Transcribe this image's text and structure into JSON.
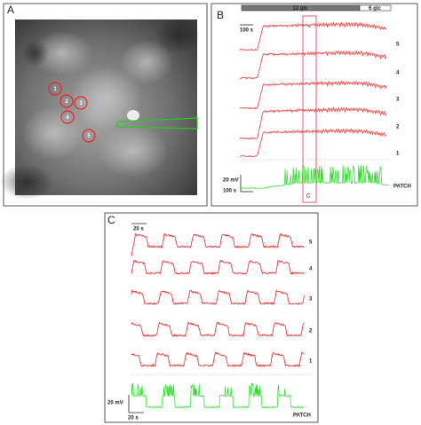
{
  "panel_a": {
    "label": "A",
    "cells": [
      "1",
      "2",
      "3",
      "4",
      "5"
    ]
  },
  "panel_b": {
    "label": "B",
    "bar": [
      "12 glc",
      "6 glc"
    ],
    "scale_top": "100 s",
    "traces": [
      "5",
      "4",
      "3",
      "2",
      "1"
    ],
    "scale_mv": "20 mV",
    "scale_s": "100 s",
    "window": "C",
    "patch": "PATCH"
  },
  "panel_c": {
    "label": "C",
    "scale_top": "20 s",
    "traces": [
      "5",
      "4",
      "3",
      "2",
      "1"
    ],
    "scale_mv": "20 mV",
    "scale_s": "20 s",
    "patch": "PATCH"
  }
}
